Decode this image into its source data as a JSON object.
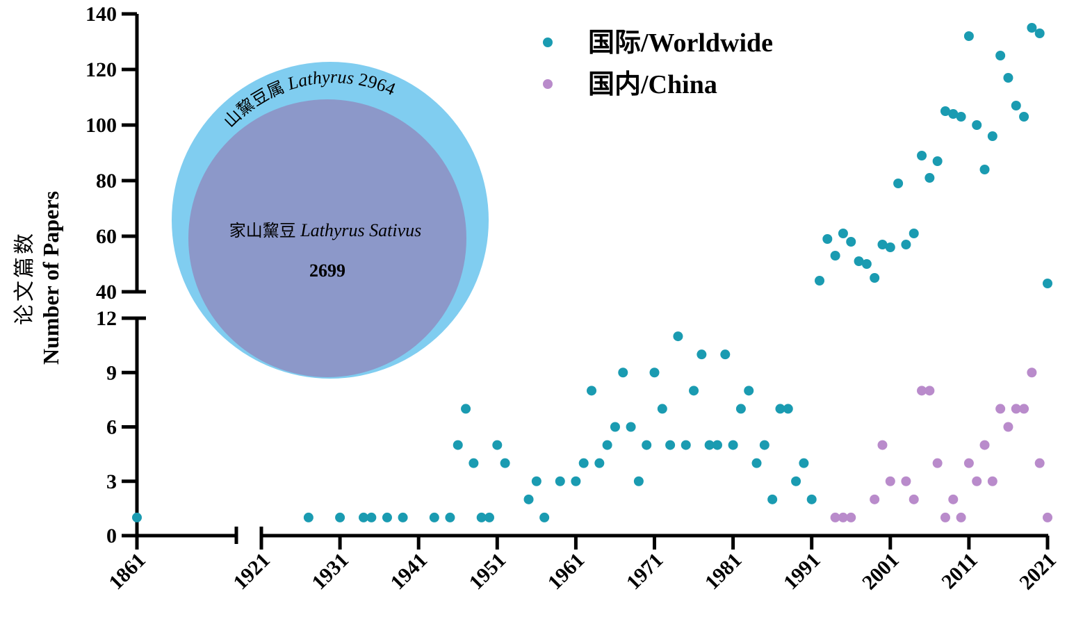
{
  "chart_data": {
    "type": "scatter",
    "ylabel_zh": "论文篇数",
    "ylabel_en": "Number of Papers",
    "x_ticks": [
      "1861",
      "1921",
      "1931",
      "1941",
      "1951",
      "1961",
      "1971",
      "1981",
      "1991",
      "2001",
      "2011",
      "2021"
    ],
    "y_ticks_lower": [
      "0",
      "3",
      "6",
      "9",
      "12"
    ],
    "y_ticks_upper": [
      "40",
      "60",
      "80",
      "100",
      "120",
      "140"
    ],
    "y_break": [
      12,
      40
    ],
    "x_break": [
      1861,
      1921
    ],
    "legend_position": "top-right",
    "series": [
      {
        "name": "国际/Worldwide",
        "color": "#1a9bb1",
        "points": [
          [
            1861,
            1
          ],
          [
            1927,
            1
          ],
          [
            1931,
            1
          ],
          [
            1934,
            1
          ],
          [
            1935,
            1
          ],
          [
            1937,
            1
          ],
          [
            1939,
            1
          ],
          [
            1943,
            1
          ],
          [
            1945,
            1
          ],
          [
            1946,
            5
          ],
          [
            1947,
            7
          ],
          [
            1948,
            4
          ],
          [
            1949,
            1
          ],
          [
            1950,
            1
          ],
          [
            1951,
            5
          ],
          [
            1952,
            4
          ],
          [
            1955,
            2
          ],
          [
            1956,
            3
          ],
          [
            1957,
            1
          ],
          [
            1959,
            3
          ],
          [
            1961,
            3
          ],
          [
            1962,
            4
          ],
          [
            1963,
            8
          ],
          [
            1964,
            4
          ],
          [
            1965,
            5
          ],
          [
            1966,
            6
          ],
          [
            1967,
            9
          ],
          [
            1968,
            6
          ],
          [
            1969,
            3
          ],
          [
            1970,
            5
          ],
          [
            1971,
            9
          ],
          [
            1972,
            7
          ],
          [
            1973,
            5
          ],
          [
            1974,
            11
          ],
          [
            1975,
            5
          ],
          [
            1976,
            8
          ],
          [
            1977,
            10
          ],
          [
            1978,
            5
          ],
          [
            1979,
            5
          ],
          [
            1980,
            10
          ],
          [
            1981,
            5
          ],
          [
            1982,
            7
          ],
          [
            1983,
            8
          ],
          [
            1984,
            4
          ],
          [
            1985,
            5
          ],
          [
            1986,
            2
          ],
          [
            1987,
            7
          ],
          [
            1988,
            7
          ],
          [
            1989,
            3
          ],
          [
            1990,
            4
          ],
          [
            1991,
            2
          ],
          [
            1992,
            44
          ],
          [
            1993,
            59
          ],
          [
            1994,
            53
          ],
          [
            1995,
            61
          ],
          [
            1996,
            58
          ],
          [
            1997,
            51
          ],
          [
            1998,
            50
          ],
          [
            1999,
            45
          ],
          [
            2000,
            57
          ],
          [
            2001,
            56
          ],
          [
            2002,
            79
          ],
          [
            2003,
            57
          ],
          [
            2004,
            61
          ],
          [
            2005,
            89
          ],
          [
            2006,
            81
          ],
          [
            2007,
            87
          ],
          [
            2008,
            105
          ],
          [
            2009,
            104
          ],
          [
            2010,
            103
          ],
          [
            2011,
            132
          ],
          [
            2012,
            100
          ],
          [
            2013,
            84
          ],
          [
            2014,
            96
          ],
          [
            2015,
            125
          ],
          [
            2016,
            117
          ],
          [
            2017,
            107
          ],
          [
            2018,
            103
          ],
          [
            2019,
            135
          ],
          [
            2020,
            133
          ],
          [
            2021,
            43
          ]
        ]
      },
      {
        "name": "国内/China",
        "color": "#b98bcb",
        "points": [
          [
            1994,
            1
          ],
          [
            1995,
            1
          ],
          [
            1996,
            1
          ],
          [
            1999,
            2
          ],
          [
            2000,
            5
          ],
          [
            2001,
            3
          ],
          [
            2003,
            3
          ],
          [
            2004,
            2
          ],
          [
            2005,
            8
          ],
          [
            2006,
            8
          ],
          [
            2007,
            4
          ],
          [
            2008,
            1
          ],
          [
            2009,
            2
          ],
          [
            2010,
            1
          ],
          [
            2011,
            4
          ],
          [
            2012,
            3
          ],
          [
            2013,
            5
          ],
          [
            2014,
            3
          ],
          [
            2015,
            7
          ],
          [
            2016,
            6
          ],
          [
            2017,
            7
          ],
          [
            2018,
            7
          ],
          [
            2019,
            9
          ],
          [
            2020,
            4
          ],
          [
            2021,
            1
          ]
        ]
      }
    ]
  },
  "venn": {
    "outer_label_zh": "山黧豆属",
    "outer_label_en": "Lathyrus",
    "outer_value": "2964",
    "inner_label_zh": "家山黧豆",
    "inner_label_en": "Lathyrus Sativus",
    "inner_value": "2699",
    "outer_color": "#80cdf0",
    "inner_color": "#8c98c9"
  }
}
